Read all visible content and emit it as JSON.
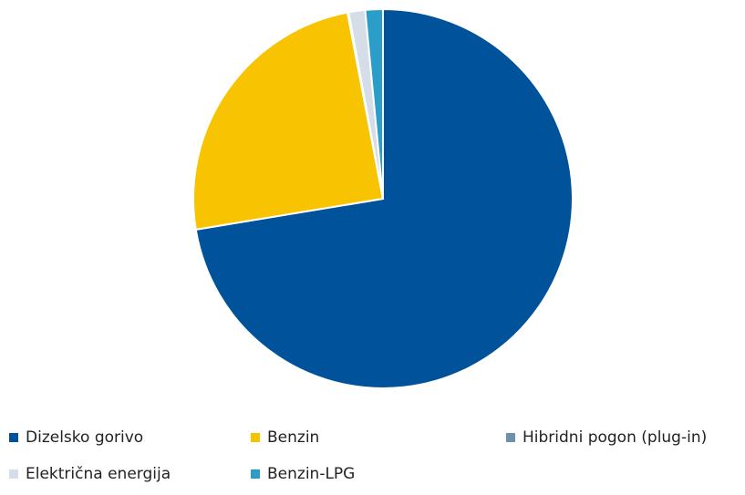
{
  "chart_data": {
    "type": "pie",
    "categories": [
      "Dizelsko gorivo",
      "Benzin",
      "Hibridni pogon (plug-in)",
      "Električna energija",
      "Benzin-LPG"
    ],
    "values": [
      72.4,
      24.6,
      0.1,
      1.4,
      1.5
    ],
    "colors": [
      "#00539b",
      "#f8c300",
      "#6d8fb0",
      "#d4dde8",
      "#2a9dc9"
    ],
    "legend": "bottom"
  }
}
